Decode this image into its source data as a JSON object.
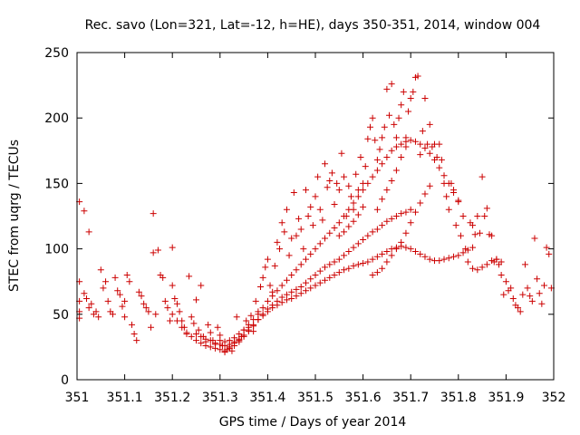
{
  "chart_data": {
    "type": "scatter",
    "title": "Rec. savo (Lon=321, Lat=-12, h=HE), days 350-351, 2014, window 004",
    "xlabel": "GPS time / Days of year 2014",
    "ylabel": "STEC from uqrg / TECUs",
    "xlim": [
      351,
      352
    ],
    "ylim": [
      0,
      250
    ],
    "xticks": [
      351,
      351.1,
      351.2,
      351.3,
      351.4,
      351.5,
      351.6,
      351.7,
      351.8,
      351.9,
      352
    ],
    "xtick_labels": [
      "351",
      "351.1",
      "351.2",
      "351.3",
      "351.4",
      "351.5",
      "351.6",
      "351.7",
      "351.8",
      "351.9",
      "352"
    ],
    "yticks": [
      0,
      50,
      100,
      150,
      200,
      250
    ],
    "ytick_labels": [
      "0",
      "50",
      "100",
      "150",
      "200",
      "250"
    ],
    "marker": "+",
    "color": "#cc0000",
    "grid": false,
    "points": [
      [
        351.005,
        136
      ],
      [
        351.015,
        129
      ],
      [
        351.025,
        113
      ],
      [
        351.005,
        75
      ],
      [
        351.005,
        60
      ],
      [
        351.005,
        52
      ],
      [
        351.005,
        47
      ],
      [
        351.015,
        66
      ],
      [
        351.02,
        62
      ],
      [
        351.025,
        55
      ],
      [
        351.03,
        58
      ],
      [
        351.035,
        50
      ],
      [
        351.04,
        52
      ],
      [
        351.045,
        48
      ],
      [
        351.05,
        84
      ],
      [
        351.055,
        70
      ],
      [
        351.06,
        75
      ],
      [
        351.065,
        60
      ],
      [
        351.07,
        52
      ],
      [
        351.075,
        50
      ],
      [
        351.08,
        78
      ],
      [
        351.085,
        68
      ],
      [
        351.09,
        65
      ],
      [
        351.095,
        56
      ],
      [
        351.1,
        60
      ],
      [
        351.1,
        48
      ],
      [
        351.105,
        80
      ],
      [
        351.11,
        75
      ],
      [
        351.115,
        42
      ],
      [
        351.12,
        35
      ],
      [
        351.125,
        30
      ],
      [
        351.13,
        67
      ],
      [
        351.135,
        64
      ],
      [
        351.14,
        58
      ],
      [
        351.145,
        55
      ],
      [
        351.15,
        52
      ],
      [
        351.155,
        40
      ],
      [
        351.16,
        127
      ],
      [
        351.16,
        97
      ],
      [
        351.165,
        50
      ],
      [
        351.17,
        99
      ],
      [
        351.175,
        80
      ],
      [
        351.18,
        78
      ],
      [
        351.185,
        60
      ],
      [
        351.19,
        55
      ],
      [
        351.195,
        45
      ],
      [
        351.2,
        101
      ],
      [
        351.2,
        72
      ],
      [
        351.205,
        62
      ],
      [
        351.21,
        58
      ],
      [
        351.215,
        52
      ],
      [
        351.22,
        45
      ],
      [
        351.225,
        40
      ],
      [
        351.23,
        35
      ],
      [
        351.235,
        79
      ],
      [
        351.24,
        48
      ],
      [
        351.245,
        43
      ],
      [
        351.25,
        61
      ],
      [
        351.255,
        38
      ],
      [
        351.26,
        72
      ],
      [
        351.265,
        33
      ],
      [
        351.27,
        29
      ],
      [
        351.275,
        42
      ],
      [
        351.28,
        36
      ],
      [
        351.285,
        30
      ],
      [
        351.29,
        27
      ],
      [
        351.295,
        40
      ],
      [
        351.3,
        34
      ],
      [
        351.305,
        26
      ],
      [
        351.31,
        21
      ],
      [
        351.315,
        23
      ],
      [
        351.32,
        25
      ],
      [
        351.325,
        22
      ],
      [
        351.33,
        28
      ],
      [
        351.335,
        48
      ],
      [
        351.34,
        30
      ],
      [
        351.345,
        33
      ],
      [
        351.35,
        38
      ],
      [
        351.355,
        45
      ],
      [
        351.36,
        40
      ],
      [
        351.365,
        49
      ],
      [
        351.37,
        37
      ],
      [
        351.375,
        60
      ],
      [
        351.38,
        52
      ],
      [
        351.385,
        71
      ],
      [
        351.39,
        78
      ],
      [
        351.395,
        86
      ],
      [
        351.4,
        92
      ],
      [
        351.405,
        72
      ],
      [
        351.41,
        67
      ],
      [
        351.415,
        87
      ],
      [
        351.42,
        105
      ],
      [
        351.425,
        100
      ],
      [
        351.43,
        120
      ],
      [
        351.435,
        113
      ],
      [
        351.44,
        130
      ],
      [
        351.445,
        95
      ],
      [
        351.45,
        108
      ],
      [
        351.455,
        143
      ],
      [
        351.46,
        110
      ],
      [
        351.465,
        123
      ],
      [
        351.47,
        115
      ],
      [
        351.475,
        100
      ],
      [
        351.48,
        145
      ],
      [
        351.485,
        125
      ],
      [
        351.49,
        132
      ],
      [
        351.495,
        118
      ],
      [
        351.5,
        140
      ],
      [
        351.505,
        155
      ],
      [
        351.51,
        130
      ],
      [
        351.515,
        122
      ],
      [
        351.52,
        165
      ],
      [
        351.525,
        147
      ],
      [
        351.53,
        152
      ],
      [
        351.535,
        158
      ],
      [
        351.54,
        134
      ],
      [
        351.545,
        150
      ],
      [
        351.55,
        145
      ],
      [
        351.555,
        173
      ],
      [
        351.56,
        155
      ],
      [
        351.565,
        125
      ],
      [
        351.57,
        148
      ],
      [
        351.575,
        140
      ],
      [
        351.58,
        130
      ],
      [
        351.585,
        157
      ],
      [
        351.59,
        145
      ],
      [
        351.595,
        170
      ],
      [
        351.6,
        150
      ],
      [
        351.605,
        163
      ],
      [
        351.61,
        184
      ],
      [
        351.615,
        193
      ],
      [
        351.62,
        200
      ],
      [
        351.625,
        183
      ],
      [
        351.63,
        168
      ],
      [
        351.635,
        176
      ],
      [
        351.64,
        185
      ],
      [
        351.645,
        193
      ],
      [
        351.65,
        222
      ],
      [
        351.655,
        202
      ],
      [
        351.66,
        226
      ],
      [
        351.665,
        195
      ],
      [
        351.67,
        185
      ],
      [
        351.675,
        200
      ],
      [
        351.68,
        210
      ],
      [
        351.685,
        220
      ],
      [
        351.69,
        185
      ],
      [
        351.695,
        205
      ],
      [
        351.7,
        215
      ],
      [
        351.705,
        220
      ],
      [
        351.71,
        231
      ],
      [
        351.715,
        232
      ],
      [
        351.72,
        172
      ],
      [
        351.725,
        190
      ],
      [
        351.73,
        215
      ],
      [
        351.735,
        180
      ],
      [
        351.74,
        195
      ],
      [
        351.745,
        178
      ],
      [
        351.75,
        180
      ],
      [
        351.755,
        170
      ],
      [
        351.76,
        180
      ],
      [
        351.765,
        168
      ],
      [
        351.77,
        150
      ],
      [
        351.775,
        140
      ],
      [
        351.78,
        130
      ],
      [
        351.785,
        150
      ],
      [
        351.79,
        145
      ],
      [
        351.795,
        118
      ],
      [
        351.8,
        137
      ],
      [
        351.805,
        110
      ],
      [
        351.81,
        125
      ],
      [
        351.815,
        100
      ],
      [
        351.82,
        90
      ],
      [
        351.825,
        120
      ],
      [
        351.83,
        118
      ],
      [
        351.835,
        111
      ],
      [
        351.84,
        125
      ],
      [
        351.845,
        112
      ],
      [
        351.85,
        155
      ],
      [
        351.855,
        125
      ],
      [
        351.86,
        131
      ],
      [
        351.865,
        111
      ],
      [
        351.87,
        110
      ],
      [
        351.875,
        90
      ],
      [
        351.88,
        92
      ],
      [
        351.885,
        88
      ],
      [
        351.89,
        80
      ],
      [
        351.895,
        65
      ],
      [
        351.9,
        75
      ],
      [
        351.905,
        68
      ],
      [
        351.91,
        70
      ],
      [
        351.915,
        62
      ],
      [
        351.92,
        57
      ],
      [
        351.925,
        55
      ],
      [
        351.93,
        52
      ],
      [
        351.935,
        65
      ],
      [
        351.94,
        88
      ],
      [
        351.945,
        70
      ],
      [
        351.95,
        64
      ],
      [
        351.955,
        60
      ],
      [
        351.96,
        108
      ],
      [
        351.965,
        77
      ],
      [
        351.97,
        66
      ],
      [
        351.975,
        58
      ],
      [
        351.98,
        72
      ],
      [
        351.985,
        101
      ],
      [
        351.99,
        96
      ],
      [
        351.995,
        70
      ],
      [
        351.2,
        50
      ],
      [
        351.21,
        45
      ],
      [
        351.22,
        40
      ],
      [
        351.23,
        36
      ],
      [
        351.24,
        33
      ],
      [
        351.25,
        30
      ],
      [
        351.26,
        28
      ],
      [
        351.27,
        26
      ],
      [
        351.28,
        25
      ],
      [
        351.29,
        24
      ],
      [
        351.3,
        23
      ],
      [
        351.31,
        22
      ],
      [
        351.32,
        24
      ],
      [
        351.33,
        26
      ],
      [
        351.34,
        29
      ],
      [
        351.35,
        33
      ],
      [
        351.36,
        37
      ],
      [
        351.37,
        41
      ],
      [
        351.38,
        46
      ],
      [
        351.39,
        50
      ],
      [
        351.4,
        54
      ],
      [
        351.41,
        57
      ],
      [
        351.42,
        60
      ],
      [
        351.43,
        63
      ],
      [
        351.44,
        65
      ],
      [
        351.45,
        67
      ],
      [
        351.46,
        69
      ],
      [
        351.47,
        71
      ],
      [
        351.48,
        74
      ],
      [
        351.49,
        77
      ],
      [
        351.5,
        80
      ],
      [
        351.51,
        83
      ],
      [
        351.52,
        86
      ],
      [
        351.53,
        88
      ],
      [
        351.54,
        90
      ],
      [
        351.55,
        92
      ],
      [
        351.56,
        95
      ],
      [
        351.57,
        98
      ],
      [
        351.58,
        101
      ],
      [
        351.59,
        104
      ],
      [
        351.6,
        107
      ],
      [
        351.61,
        110
      ],
      [
        351.62,
        113
      ],
      [
        351.63,
        115
      ],
      [
        351.64,
        118
      ],
      [
        351.65,
        121
      ],
      [
        351.66,
        123
      ],
      [
        351.67,
        125
      ],
      [
        351.68,
        127
      ],
      [
        351.69,
        128
      ],
      [
        351.7,
        130
      ],
      [
        351.25,
        35
      ],
      [
        351.26,
        33
      ],
      [
        351.27,
        31
      ],
      [
        351.28,
        30
      ],
      [
        351.29,
        28
      ],
      [
        351.3,
        27
      ],
      [
        351.31,
        26
      ],
      [
        351.32,
        27
      ],
      [
        351.33,
        29
      ],
      [
        351.34,
        31
      ],
      [
        351.35,
        34
      ],
      [
        351.36,
        38
      ],
      [
        351.37,
        42
      ],
      [
        351.38,
        46
      ],
      [
        351.39,
        49
      ],
      [
        351.4,
        52
      ],
      [
        351.41,
        55
      ],
      [
        351.42,
        57
      ],
      [
        351.43,
        59
      ],
      [
        351.44,
        61
      ],
      [
        351.45,
        62
      ],
      [
        351.46,
        64
      ],
      [
        351.47,
        66
      ],
      [
        351.48,
        68
      ],
      [
        351.49,
        70
      ],
      [
        351.5,
        72
      ],
      [
        351.51,
        74
      ],
      [
        351.52,
        76
      ],
      [
        351.53,
        78
      ],
      [
        351.54,
        80
      ],
      [
        351.55,
        82
      ],
      [
        351.56,
        84
      ],
      [
        351.57,
        85
      ],
      [
        351.58,
        87
      ],
      [
        351.59,
        88
      ],
      [
        351.6,
        89
      ],
      [
        351.61,
        90
      ],
      [
        351.62,
        92
      ],
      [
        351.63,
        94
      ],
      [
        351.64,
        96
      ],
      [
        351.65,
        98
      ],
      [
        351.66,
        100
      ],
      [
        351.67,
        101
      ],
      [
        351.68,
        102
      ],
      [
        351.69,
        101
      ],
      [
        351.7,
        100
      ],
      [
        351.71,
        98
      ],
      [
        351.72,
        96
      ],
      [
        351.73,
        94
      ],
      [
        351.74,
        92
      ],
      [
        351.75,
        91
      ],
      [
        351.76,
        91
      ],
      [
        351.77,
        92
      ],
      [
        351.78,
        93
      ],
      [
        351.79,
        94
      ],
      [
        351.8,
        95
      ],
      [
        351.81,
        97
      ],
      [
        351.82,
        99
      ],
      [
        351.83,
        101
      ],
      [
        351.3,
        30
      ],
      [
        351.31,
        29
      ],
      [
        351.32,
        30
      ],
      [
        351.33,
        32
      ],
      [
        351.34,
        35
      ],
      [
        351.35,
        38
      ],
      [
        351.36,
        42
      ],
      [
        351.37,
        46
      ],
      [
        351.38,
        50
      ],
      [
        351.39,
        55
      ],
      [
        351.4,
        60
      ],
      [
        351.41,
        64
      ],
      [
        351.42,
        68
      ],
      [
        351.43,
        72
      ],
      [
        351.44,
        76
      ],
      [
        351.45,
        80
      ],
      [
        351.46,
        84
      ],
      [
        351.47,
        88
      ],
      [
        351.48,
        92
      ],
      [
        351.49,
        96
      ],
      [
        351.5,
        100
      ],
      [
        351.51,
        104
      ],
      [
        351.52,
        108
      ],
      [
        351.53,
        112
      ],
      [
        351.54,
        116
      ],
      [
        351.55,
        120
      ],
      [
        351.56,
        125
      ],
      [
        351.57,
        130
      ],
      [
        351.58,
        135
      ],
      [
        351.59,
        140
      ],
      [
        351.6,
        145
      ],
      [
        351.61,
        150
      ],
      [
        351.62,
        155
      ],
      [
        351.63,
        160
      ],
      [
        351.64,
        165
      ],
      [
        351.65,
        170
      ],
      [
        351.66,
        175
      ],
      [
        351.67,
        178
      ],
      [
        351.68,
        180
      ],
      [
        351.69,
        182
      ],
      [
        351.7,
        183
      ],
      [
        351.71,
        182
      ],
      [
        351.72,
        180
      ],
      [
        351.73,
        177
      ],
      [
        351.74,
        173
      ],
      [
        351.75,
        168
      ],
      [
        351.76,
        162
      ],
      [
        351.77,
        156
      ],
      [
        351.78,
        150
      ],
      [
        351.79,
        143
      ],
      [
        351.8,
        136
      ],
      [
        351.62,
        80
      ],
      [
        351.63,
        82
      ],
      [
        351.64,
        85
      ],
      [
        351.65,
        90
      ],
      [
        351.66,
        95
      ],
      [
        351.67,
        100
      ],
      [
        351.68,
        105
      ],
      [
        351.69,
        112
      ],
      [
        351.7,
        120
      ],
      [
        351.71,
        128
      ],
      [
        351.72,
        135
      ],
      [
        351.73,
        142
      ],
      [
        351.74,
        148
      ],
      [
        351.63,
        130
      ],
      [
        351.64,
        138
      ],
      [
        351.65,
        145
      ],
      [
        351.66,
        152
      ],
      [
        351.67,
        160
      ],
      [
        351.68,
        170
      ],
      [
        351.69,
        178
      ],
      [
        351.55,
        110
      ],
      [
        351.56,
        113
      ],
      [
        351.57,
        117
      ],
      [
        351.58,
        121
      ],
      [
        351.59,
        126
      ],
      [
        351.6,
        132
      ],
      [
        351.83,
        85
      ],
      [
        351.84,
        84
      ],
      [
        351.85,
        86
      ],
      [
        351.86,
        88
      ],
      [
        351.87,
        91
      ],
      [
        351.88,
        92
      ],
      [
        351.89,
        90
      ]
    ]
  }
}
